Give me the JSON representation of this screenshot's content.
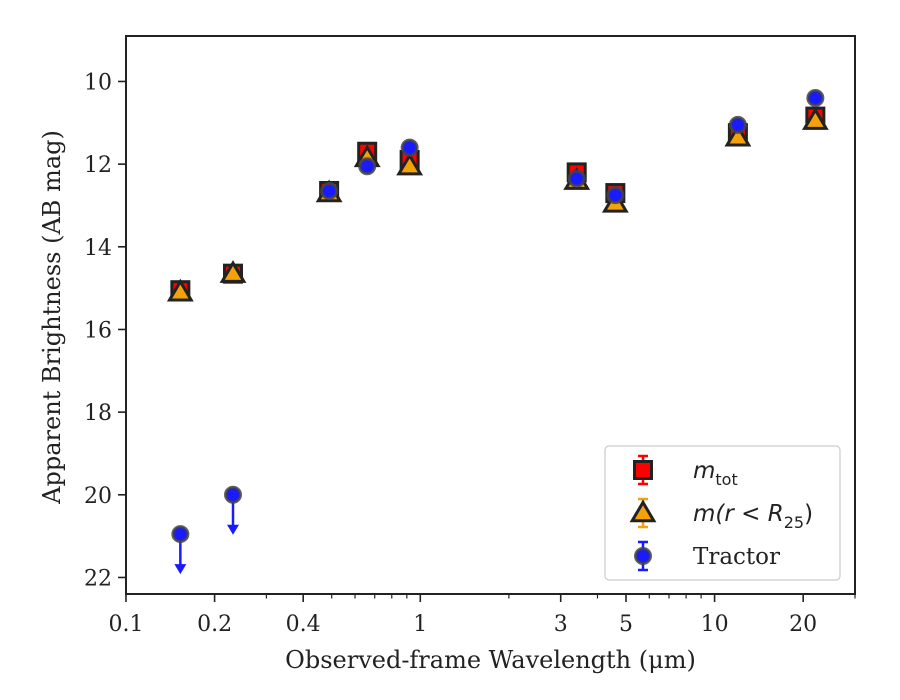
{
  "chart_data": {
    "type": "scatter",
    "xlabel": "Observed-frame Wavelength (μm)",
    "ylabel": "Apparent Brightness (AB mag)",
    "x_scale": "log",
    "xlim": [
      0.1,
      30
    ],
    "ylim": [
      22.4,
      8.9
    ],
    "y_inverted": true,
    "grid": false,
    "legend_placement": "bottom-right",
    "x_ticks": [
      {
        "value": 0.1,
        "label": "0.1"
      },
      {
        "value": 0.2,
        "label": "0.2"
      },
      {
        "value": 0.4,
        "label": "0.4"
      },
      {
        "value": 1,
        "label": "1"
      },
      {
        "value": 3,
        "label": "3"
      },
      {
        "value": 5,
        "label": "5"
      },
      {
        "value": 10,
        "label": "10"
      },
      {
        "value": 20,
        "label": "20"
      }
    ],
    "y_ticks": [
      10,
      12,
      14,
      16,
      18,
      20,
      22
    ],
    "series": [
      {
        "name": "m_tot",
        "legend_label": "m",
        "legend_sub": "tot",
        "marker": "square",
        "color": "#ff0000",
        "edge": "#222222",
        "x": [
          0.153,
          0.231,
          0.49,
          0.66,
          0.92,
          3.4,
          4.6,
          12.0,
          22.0
        ],
        "y": [
          15.05,
          14.65,
          12.65,
          11.7,
          11.9,
          12.2,
          12.7,
          11.25,
          10.85
        ]
      },
      {
        "name": "m(r < R25)",
        "legend_label": "m(r < R",
        "legend_sub": "25",
        "legend_tail": ")",
        "marker": "triangle",
        "color": "#f5a20a",
        "edge": "#222222",
        "x": [
          0.153,
          0.231,
          0.49,
          0.66,
          0.92,
          3.4,
          4.6,
          12.0,
          22.0
        ],
        "y": [
          15.1,
          14.65,
          12.7,
          11.85,
          12.05,
          12.4,
          12.95,
          11.35,
          10.95
        ]
      },
      {
        "name": "Tractor",
        "legend_label": "Tractor",
        "marker": "circle",
        "color": "#1a1aff",
        "edge": "#444444",
        "x": [
          0.153,
          0.231,
          0.49,
          0.66,
          0.92,
          3.4,
          4.6,
          12.0,
          22.0
        ],
        "y": [
          20.95,
          20.0,
          12.65,
          12.05,
          11.6,
          12.35,
          12.75,
          11.05,
          10.4
        ],
        "upper_limits": [
          true,
          true,
          false,
          false,
          false,
          false,
          false,
          false,
          false
        ]
      }
    ]
  }
}
